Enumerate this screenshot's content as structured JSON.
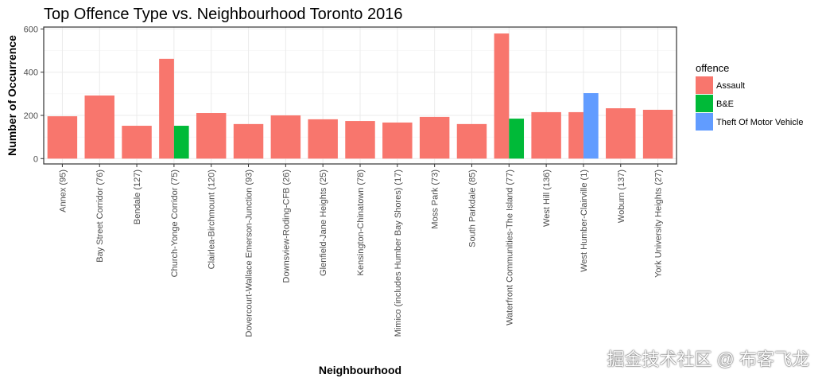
{
  "chart_data": {
    "type": "bar",
    "title": "Top Offence Type vs. Neighbourhood Toronto 2016",
    "xlabel": "Neighbourhood",
    "ylabel": "Number of Occurrence",
    "ylim": [
      0,
      620
    ],
    "yticks": [
      0,
      200,
      400,
      600
    ],
    "grid": true,
    "legend": {
      "title": "offence",
      "placement": "right"
    },
    "categories": [
      "Annex (95)",
      "Bay Street Corridor (76)",
      "Bendale (127)",
      "Church-Yonge Corridor (75)",
      "Clairlea-Birchmount (120)",
      "Dovercourt-Wallace Emerson-Junction (93)",
      "Downsview-Roding-CFB (26)",
      "Glenfield-Jane Heights (25)",
      "Kensington-Chinatown (78)",
      "Mimico (includes Humber Bay Shores) (17)",
      "Moss Park (73)",
      "South Parkdale (85)",
      "Waterfront Communities-The Island (77)",
      "West Hill (136)",
      "West Humber-Clairville (1)",
      "Woburn (137)",
      "York University Heights (27)"
    ],
    "series": [
      {
        "name": "Assault",
        "color": "#F8766D",
        "values": [
          196,
          292,
          152,
          462,
          211,
          160,
          200,
          182,
          174,
          167,
          193,
          160,
          579,
          215,
          215,
          233,
          226
        ]
      },
      {
        "name": "B&E",
        "color": "#00BA38",
        "values": [
          null,
          null,
          null,
          152,
          null,
          null,
          null,
          null,
          null,
          null,
          null,
          null,
          185,
          null,
          null,
          null,
          null
        ]
      },
      {
        "name": "Theft Of Motor Vehicle",
        "color": "#619CFF",
        "values": [
          null,
          null,
          null,
          null,
          null,
          null,
          null,
          null,
          null,
          null,
          null,
          null,
          null,
          null,
          303,
          null,
          null
        ]
      }
    ]
  },
  "watermark": "掘金技术社区 @ 布客飞龙"
}
